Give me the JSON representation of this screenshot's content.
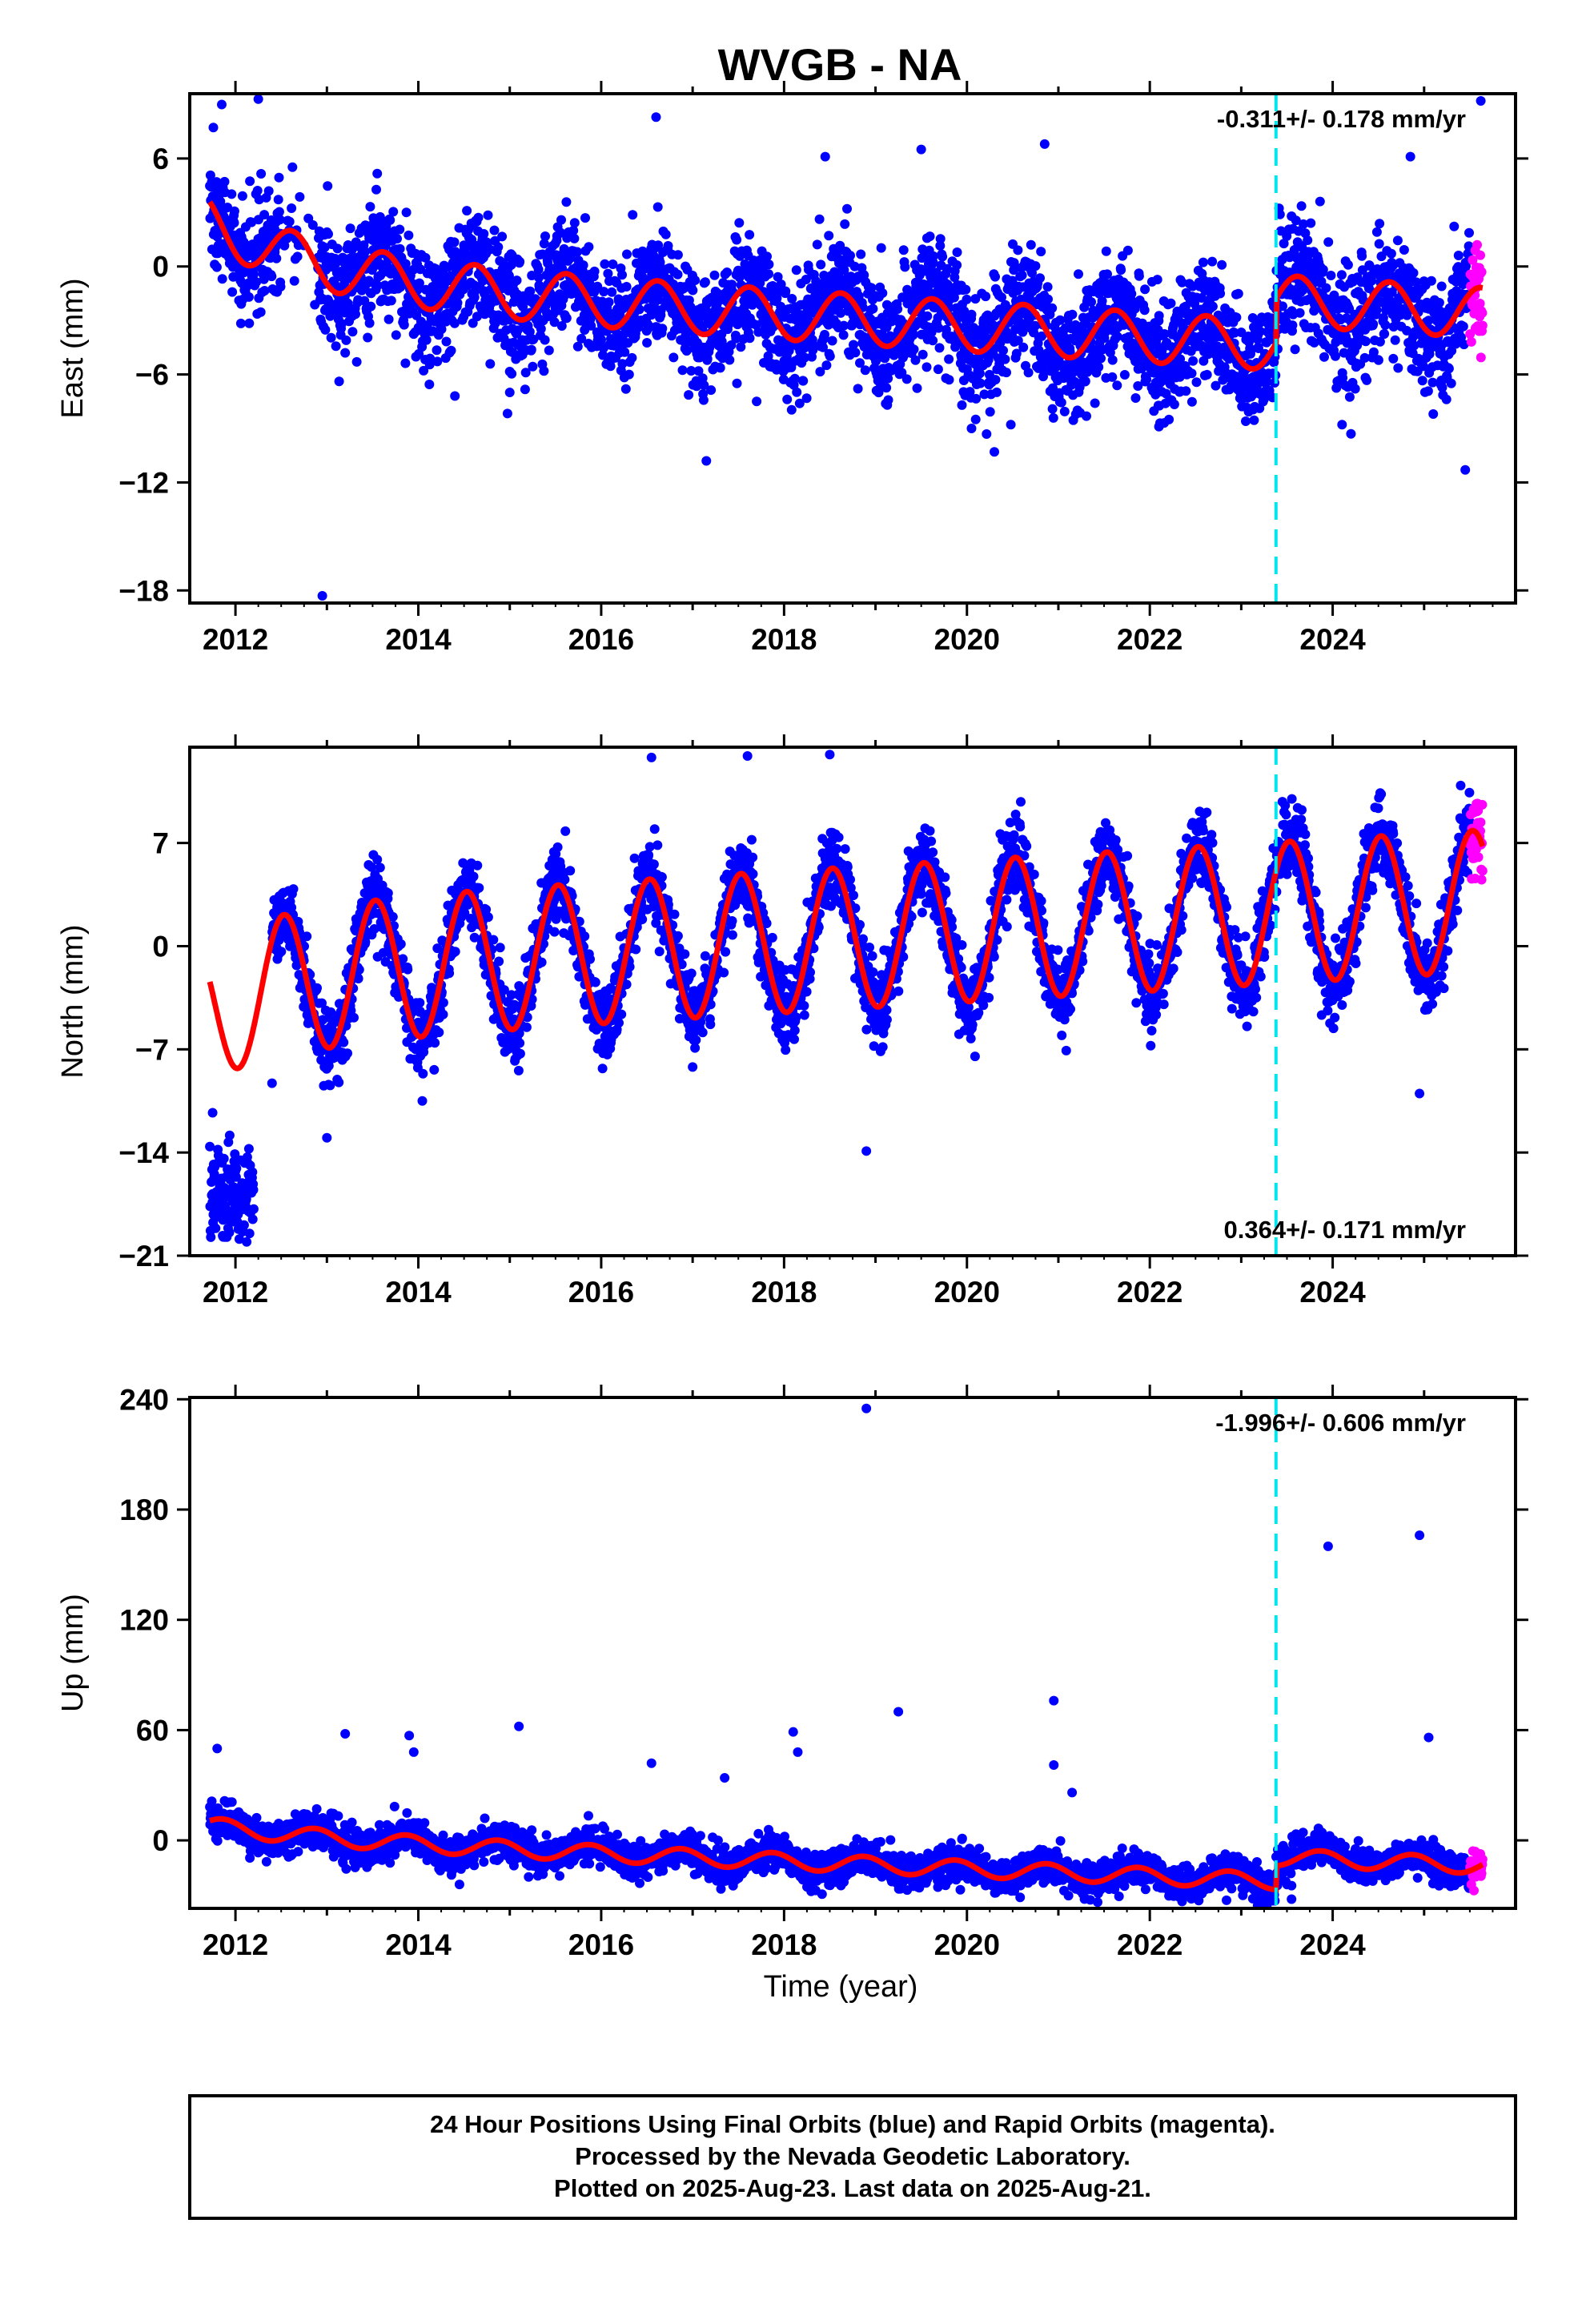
{
  "title": "WVGB - NA",
  "x_axis_label": "Time (year)",
  "footer": {
    "line1": "24 Hour Positions Using Final Orbits (blue) and Rapid Orbits (magenta).",
    "line2": "Processed by the Nevada Geodetic Laboratory.",
    "line3": "Plotted on 2025-Aug-23. Last data on 2025-Aug-21."
  },
  "colors": {
    "final_orbits": "#0000ff",
    "rapid_orbits": "#ff00ff",
    "model_fit": "#ff0000",
    "equipment_change": "#00e5ee",
    "frame": "#000000"
  },
  "chart_data": [
    {
      "type": "scatter",
      "name": "east",
      "ylabel": "East (mm)",
      "rate_text": "-0.311+/- 0.178 mm/yr",
      "rate_position": "top-right",
      "xlim": [
        2011.5,
        2026.0
      ],
      "ylim": [
        -18.7,
        9.6
      ],
      "xticks": [
        2012,
        2014,
        2016,
        2018,
        2020,
        2022,
        2024
      ],
      "xtick_labels": [
        "2012",
        "2014",
        "2016",
        "2018",
        "2020",
        "2022",
        "2024"
      ],
      "yticks": [
        -18,
        -12,
        -6,
        0,
        6
      ],
      "ytick_labels": [
        "−18",
        "−12",
        "−6",
        "0",
        "6"
      ],
      "grid": false,
      "data_start": 2011.72,
      "data_end": 2025.64,
      "rapid_start": 2025.5,
      "equipment_change_year": 2023.38,
      "model": {
        "trend_mm_per_yr": -0.311,
        "offset_at_2018": -0.2,
        "annual_amplitude": 1.4,
        "annual_peak_year_fraction": 0.62,
        "early_transient_mm": 3.2,
        "early_transient_decay_yr": 1.3,
        "equipment_offset_mm": 2.5
      },
      "scatter_sd": 1.6,
      "outliers": [
        {
          "x": 2011.85,
          "y": 9.0
        },
        {
          "x": 2012.25,
          "y": 9.3
        },
        {
          "x": 2012.95,
          "y": -18.3
        },
        {
          "x": 2013.2,
          "y": -4.8
        },
        {
          "x": 2014.4,
          "y": -7.2
        },
        {
          "x": 2015.0,
          "y": -7.0
        },
        {
          "x": 2016.6,
          "y": 8.3
        },
        {
          "x": 2017.15,
          "y": -10.8
        },
        {
          "x": 2017.7,
          "y": -7.5
        },
        {
          "x": 2018.45,
          "y": 6.1
        },
        {
          "x": 2019.5,
          "y": 6.5
        },
        {
          "x": 2020.05,
          "y": -9.0
        },
        {
          "x": 2020.3,
          "y": -10.3
        },
        {
          "x": 2020.85,
          "y": 6.8
        },
        {
          "x": 2021.4,
          "y": -7.6
        },
        {
          "x": 2022.1,
          "y": -8.9
        },
        {
          "x": 2024.2,
          "y": -9.3
        },
        {
          "x": 2024.85,
          "y": 6.1
        },
        {
          "x": 2025.1,
          "y": -8.2
        },
        {
          "x": 2025.45,
          "y": -11.3
        },
        {
          "x": 2025.62,
          "y": 9.2
        }
      ]
    },
    {
      "type": "scatter",
      "name": "north",
      "ylabel": "North (mm)",
      "rate_text": "0.364+/- 0.171 mm/yr",
      "rate_position": "bottom-right",
      "xlim": [
        2011.5,
        2026.0
      ],
      "ylim": [
        -21.0,
        13.5
      ],
      "xticks": [
        2012,
        2014,
        2016,
        2018,
        2020,
        2022,
        2024
      ],
      "xtick_labels": [
        "2012",
        "2014",
        "2016",
        "2018",
        "2020",
        "2022",
        "2024"
      ],
      "yticks": [
        -21,
        -14,
        -7,
        0,
        7
      ],
      "ytick_labels": [
        "−21",
        "−14",
        "−7",
        "0",
        "7"
      ],
      "grid": false,
      "data_start": 2011.72,
      "data_end": 2025.64,
      "rapid_start": 2025.5,
      "equipment_change_year": 2023.38,
      "early_cluster": {
        "x_range": [
          2011.72,
          2012.2
        ],
        "y_center": -17.0,
        "y_sd": 1.5
      },
      "model": {
        "trend_mm_per_yr": 0.364,
        "offset_at_2018": 0.3,
        "annual_amplitude": 4.8,
        "annual_peak_year_fraction": 0.53,
        "early_transient_mm": -2.2,
        "early_transient_decay_yr": 1.0,
        "equipment_offset_mm": 0.0
      },
      "scatter_sd": 1.3,
      "outliers": [
        {
          "x": 2011.75,
          "y": -11.3
        },
        {
          "x": 2012.4,
          "y": -9.3
        },
        {
          "x": 2013.0,
          "y": -13.0
        },
        {
          "x": 2016.55,
          "y": 12.8
        },
        {
          "x": 2017.0,
          "y": -8.2
        },
        {
          "x": 2017.6,
          "y": 12.9
        },
        {
          "x": 2018.5,
          "y": 13.0
        },
        {
          "x": 2018.9,
          "y": -13.9
        },
        {
          "x": 2023.45,
          "y": 9.8
        },
        {
          "x": 2024.95,
          "y": -10.0
        },
        {
          "x": 2025.4,
          "y": 10.9
        }
      ]
    },
    {
      "type": "scatter",
      "name": "up",
      "ylabel": "Up (mm)",
      "rate_text": "-1.996+/- 0.606 mm/yr",
      "rate_position": "top-right",
      "xlim": [
        2011.5,
        2026.0
      ],
      "ylim": [
        -37.0,
        241.0
      ],
      "xticks": [
        2012,
        2014,
        2016,
        2018,
        2020,
        2022,
        2024
      ],
      "xtick_labels": [
        "2012",
        "2014",
        "2016",
        "2018",
        "2020",
        "2022",
        "2024"
      ],
      "yticks": [
        0,
        60,
        120,
        180,
        240
      ],
      "ytick_labels": [
        "0",
        "60",
        "120",
        "180",
        "240"
      ],
      "grid": false,
      "data_start": 2011.72,
      "data_end": 2025.64,
      "rapid_start": 2025.5,
      "equipment_change_year": 2023.38,
      "model": {
        "trend_mm_per_yr": -1.996,
        "offset_at_2018": 1.5,
        "annual_amplitude": 4.5,
        "annual_peak_year_fraction": 0.87,
        "early_transient_mm": 7.0,
        "early_transient_decay_yr": 1.5,
        "equipment_offset_mm": 13.0
      },
      "scatter_sd": 4.5,
      "outliers": [
        {
          "x": 2011.8,
          "y": 50
        },
        {
          "x": 2013.2,
          "y": 58
        },
        {
          "x": 2013.9,
          "y": 57
        },
        {
          "x": 2013.95,
          "y": 48
        },
        {
          "x": 2014.45,
          "y": -24
        },
        {
          "x": 2015.1,
          "y": 62
        },
        {
          "x": 2016.55,
          "y": 42
        },
        {
          "x": 2017.35,
          "y": 34
        },
        {
          "x": 2018.1,
          "y": 59
        },
        {
          "x": 2018.15,
          "y": 48
        },
        {
          "x": 2018.9,
          "y": 235
        },
        {
          "x": 2019.25,
          "y": 70
        },
        {
          "x": 2020.95,
          "y": 76
        },
        {
          "x": 2020.95,
          "y": 41
        },
        {
          "x": 2021.15,
          "y": 26
        },
        {
          "x": 2023.55,
          "y": -32
        },
        {
          "x": 2023.95,
          "y": 160
        },
        {
          "x": 2024.95,
          "y": 166
        },
        {
          "x": 2025.05,
          "y": 56
        }
      ]
    }
  ]
}
